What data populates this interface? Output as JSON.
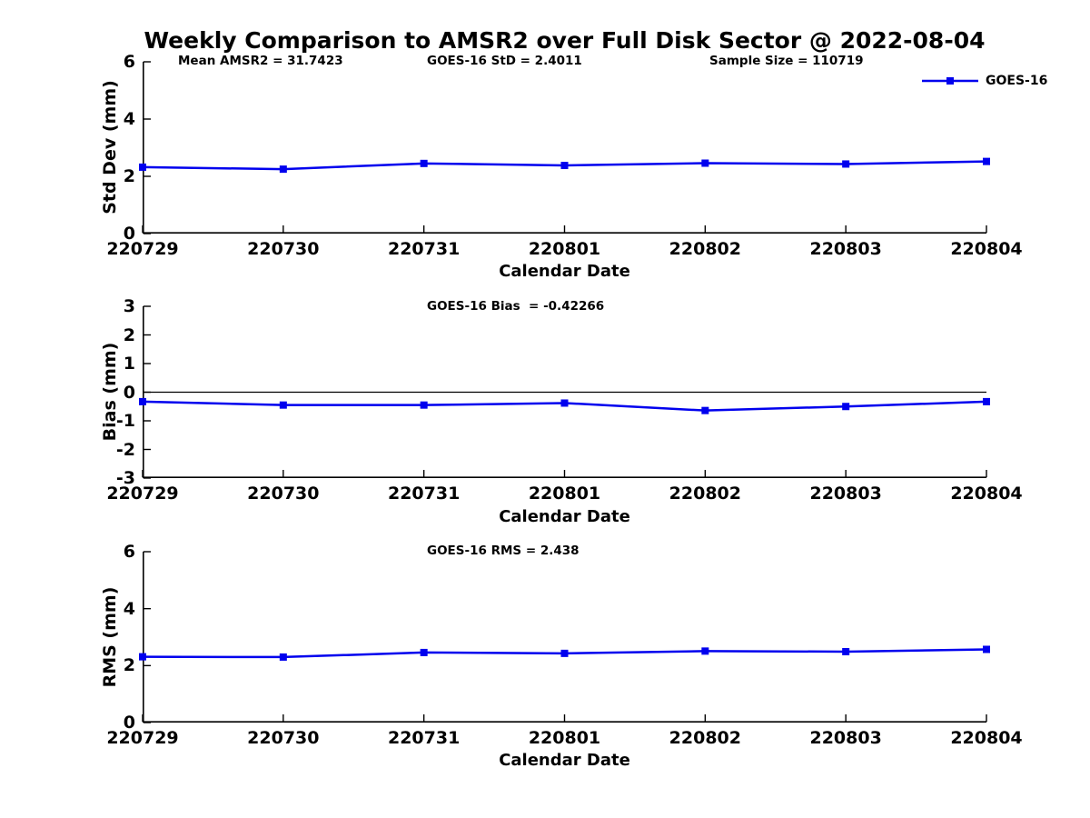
{
  "title": "Weekly Comparison to AMSR2 over Full Disk Sector @ 2022-08-04",
  "colors": {
    "series_blue": "#0000ee",
    "axis": "#000000",
    "background": "#ffffff"
  },
  "legend": {
    "label": "GOES-16",
    "position": "top-right"
  },
  "chart_data": [
    {
      "type": "line",
      "name": "std-dev",
      "xlabel": "Calendar Date",
      "ylabel": "Std Dev (mm)",
      "categories": [
        "220729",
        "220730",
        "220731",
        "220801",
        "220802",
        "220803",
        "220804"
      ],
      "series": [
        {
          "name": "GOES-16",
          "color": "#0000ee",
          "marker": "square",
          "values": [
            2.32,
            2.25,
            2.45,
            2.38,
            2.46,
            2.43,
            2.52
          ]
        }
      ],
      "ylim": [
        0,
        6
      ],
      "yticks": [
        0,
        2,
        4,
        6
      ],
      "grid": false,
      "zero_line": false,
      "annotations": [
        {
          "text": "Mean AMSR2 = 31.7423"
        },
        {
          "text": "GOES-16 StD = 2.4011"
        },
        {
          "text": "Sample Size = 110719"
        }
      ]
    },
    {
      "type": "line",
      "name": "bias",
      "xlabel": "Calendar Date",
      "ylabel": "Bias (mm)",
      "categories": [
        "220729",
        "220730",
        "220731",
        "220801",
        "220802",
        "220803",
        "220804"
      ],
      "series": [
        {
          "name": "GOES-16",
          "color": "#0000ee",
          "marker": "square",
          "values": [
            -0.33,
            -0.45,
            -0.45,
            -0.38,
            -0.64,
            -0.5,
            -0.33
          ]
        }
      ],
      "ylim": [
        -3,
        3
      ],
      "yticks": [
        -3,
        -2,
        -1,
        0,
        1,
        2,
        3
      ],
      "grid": false,
      "zero_line": true,
      "annotations": [
        {
          "text": "GOES-16 Bias  = -0.42266"
        }
      ]
    },
    {
      "type": "line",
      "name": "rms",
      "xlabel": "Calendar Date",
      "ylabel": "RMS (mm)",
      "categories": [
        "220729",
        "220730",
        "220731",
        "220801",
        "220802",
        "220803",
        "220804"
      ],
      "series": [
        {
          "name": "GOES-16",
          "color": "#0000ee",
          "marker": "square",
          "values": [
            2.31,
            2.3,
            2.46,
            2.43,
            2.51,
            2.49,
            2.57
          ]
        }
      ],
      "ylim": [
        0,
        6
      ],
      "yticks": [
        0,
        2,
        4,
        6
      ],
      "grid": false,
      "zero_line": false,
      "annotations": [
        {
          "text": "GOES-16 RMS = 2.438"
        }
      ]
    }
  ]
}
